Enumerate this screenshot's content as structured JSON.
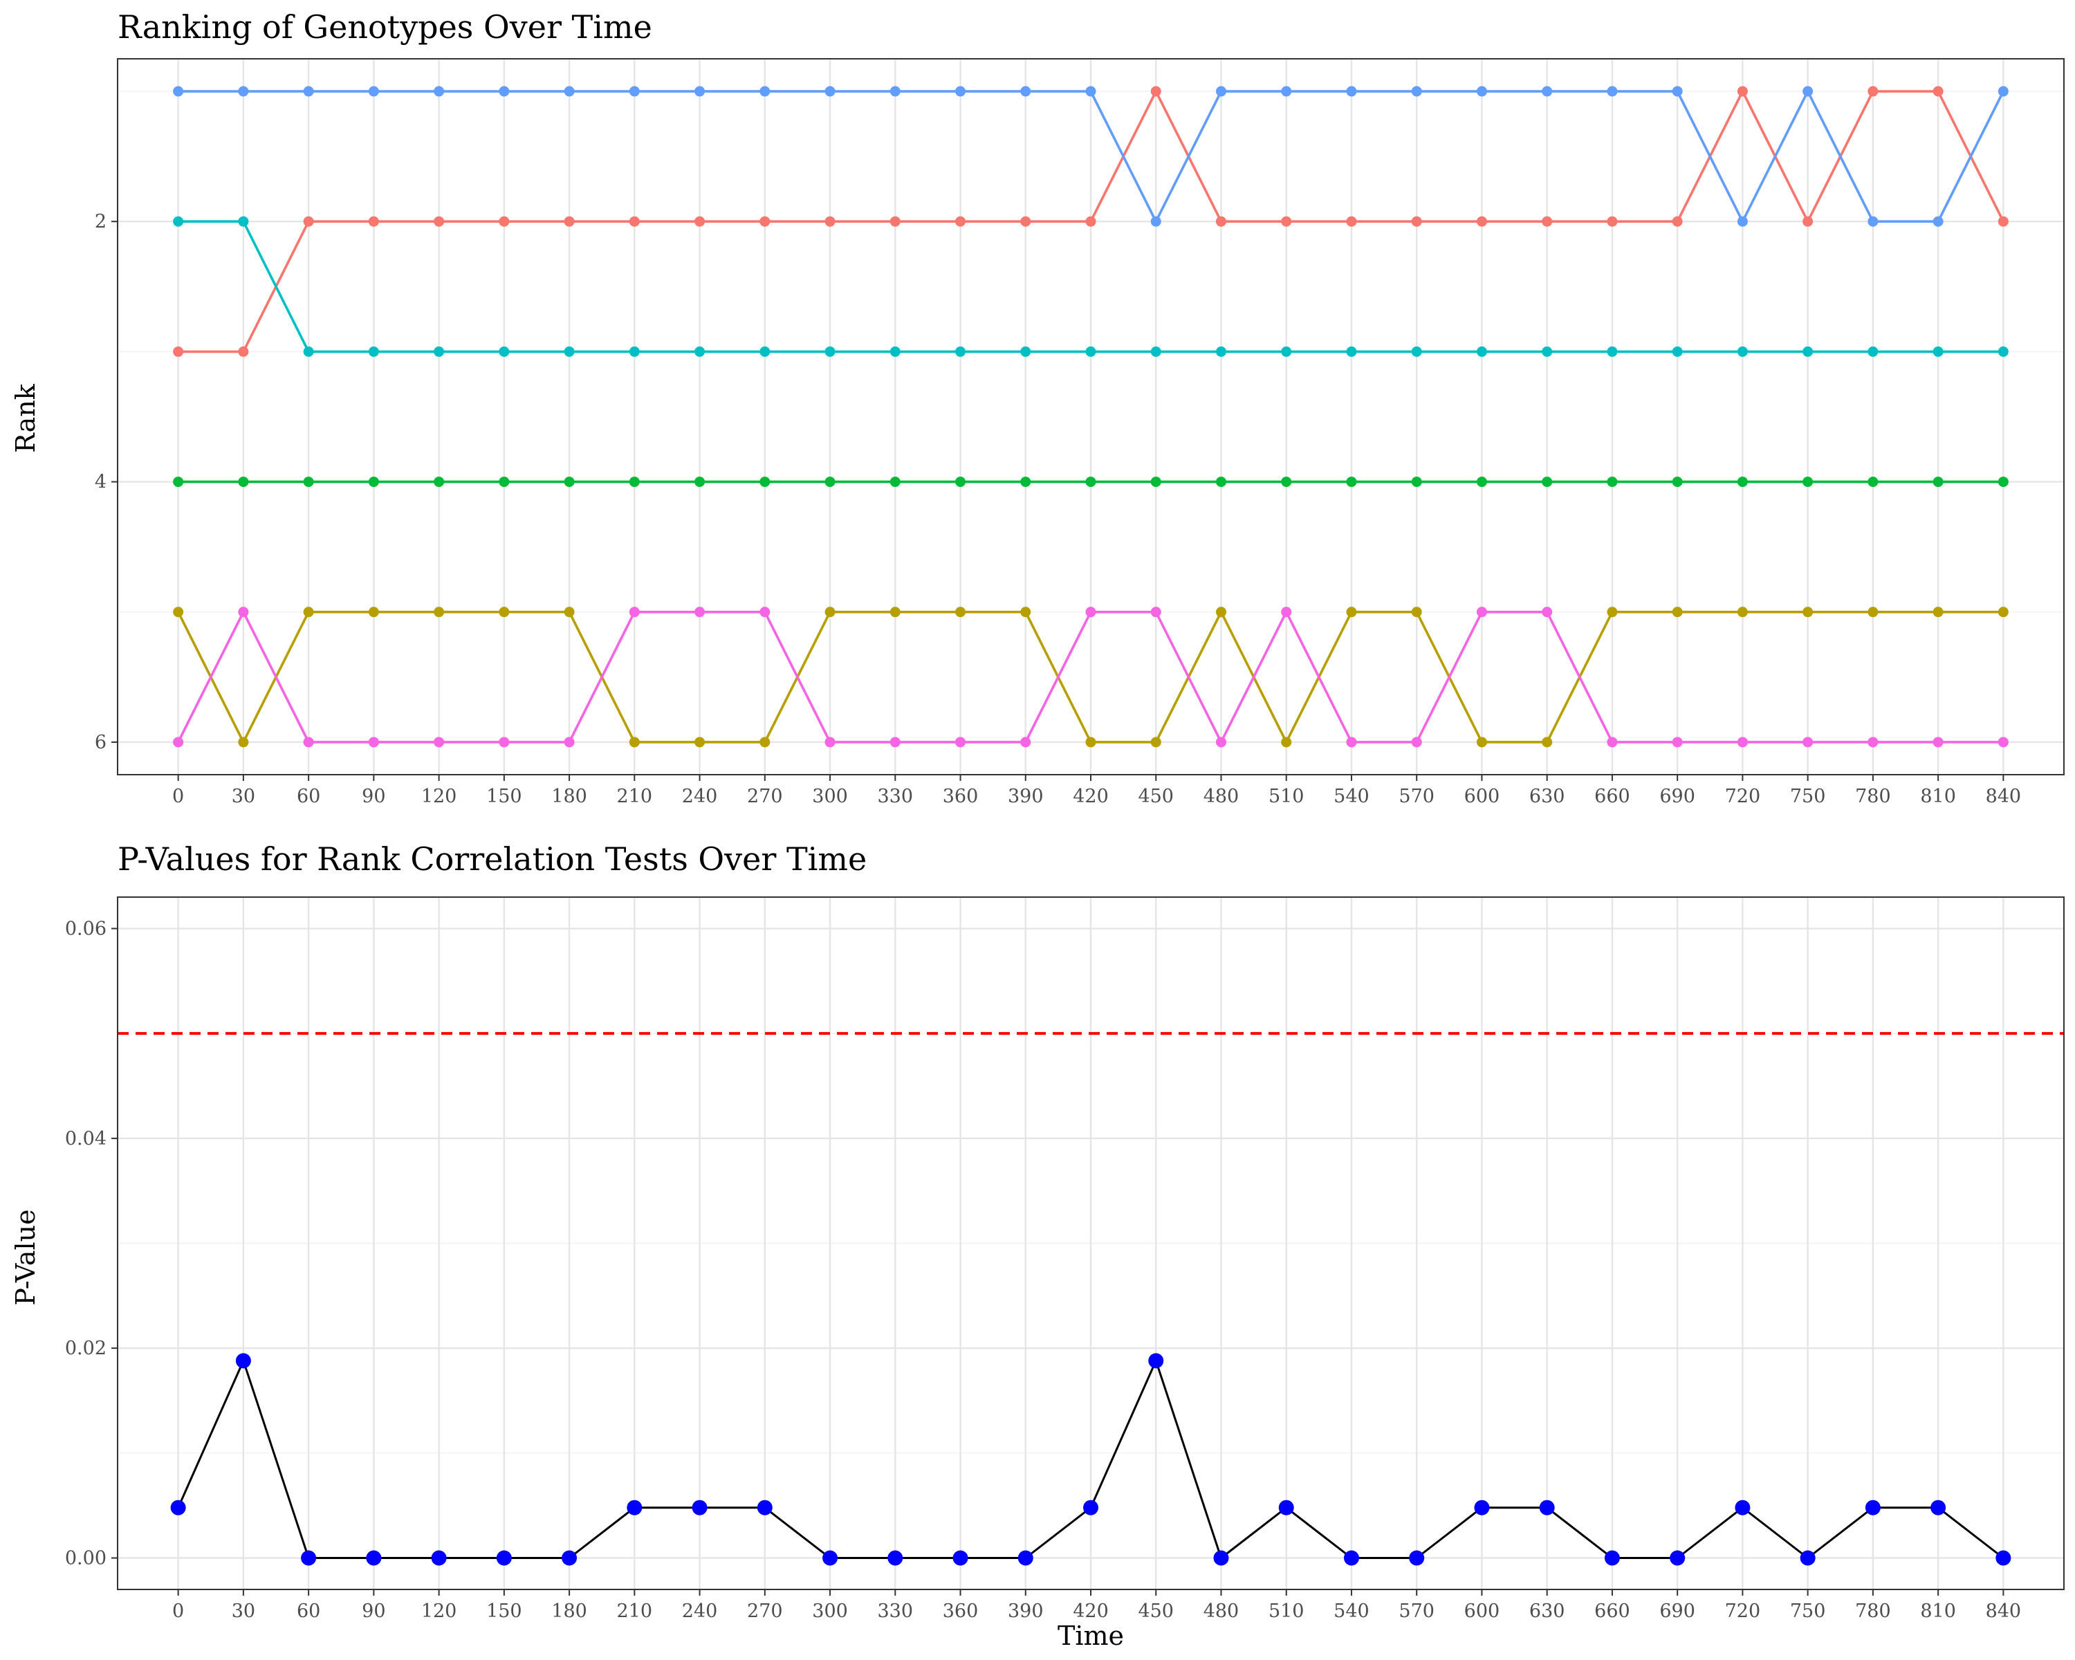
{
  "chart_data": [
    {
      "type": "line",
      "title": "Ranking of Genotypes Over Time",
      "xlabel": "",
      "ylabel": "Rank",
      "x": [
        0,
        30,
        60,
        90,
        120,
        150,
        180,
        210,
        240,
        270,
        300,
        330,
        360,
        390,
        420,
        450,
        480,
        510,
        540,
        570,
        600,
        630,
        660,
        690,
        720,
        750,
        780,
        810,
        840
      ],
      "y_ticks": [
        2,
        4,
        6
      ],
      "ylim": [
        6.25,
        0.75
      ],
      "y_reversed": true,
      "grid": true,
      "legend": "none",
      "series": [
        {
          "color": "#F8766D",
          "values": [
            3,
            3,
            2,
            2,
            2,
            2,
            2,
            2,
            2,
            2,
            2,
            2,
            2,
            2,
            2,
            1,
            2,
            2,
            2,
            2,
            2,
            2,
            2,
            2,
            1,
            2,
            1,
            1,
            2
          ]
        },
        {
          "color": "#B79F00",
          "values": [
            5,
            6,
            5,
            5,
            5,
            5,
            5,
            6,
            6,
            6,
            5,
            5,
            5,
            5,
            6,
            6,
            5,
            6,
            5,
            5,
            6,
            6,
            5,
            5,
            5,
            5,
            5,
            5,
            5
          ]
        },
        {
          "color": "#00BA38",
          "values": [
            4,
            4,
            4,
            4,
            4,
            4,
            4,
            4,
            4,
            4,
            4,
            4,
            4,
            4,
            4,
            4,
            4,
            4,
            4,
            4,
            4,
            4,
            4,
            4,
            4,
            4,
            4,
            4,
            4
          ]
        },
        {
          "color": "#00BFC4",
          "values": [
            2,
            2,
            3,
            3,
            3,
            3,
            3,
            3,
            3,
            3,
            3,
            3,
            3,
            3,
            3,
            3,
            3,
            3,
            3,
            3,
            3,
            3,
            3,
            3,
            3,
            3,
            3,
            3,
            3
          ]
        },
        {
          "color": "#619CFF",
          "values": [
            1,
            1,
            1,
            1,
            1,
            1,
            1,
            1,
            1,
            1,
            1,
            1,
            1,
            1,
            1,
            2,
            1,
            1,
            1,
            1,
            1,
            1,
            1,
            1,
            2,
            1,
            2,
            2,
            1
          ]
        },
        {
          "color": "#F564E3",
          "values": [
            6,
            5,
            6,
            6,
            6,
            6,
            6,
            5,
            5,
            5,
            6,
            6,
            6,
            6,
            5,
            5,
            6,
            5,
            6,
            6,
            5,
            5,
            6,
            6,
            6,
            6,
            6,
            6,
            6
          ]
        }
      ]
    },
    {
      "type": "line",
      "title": "P-Values for Rank Correlation Tests Over Time",
      "xlabel": "Time",
      "ylabel": "P-Value",
      "x": [
        0,
        30,
        60,
        90,
        120,
        150,
        180,
        210,
        240,
        270,
        300,
        330,
        360,
        390,
        420,
        450,
        480,
        510,
        540,
        570,
        600,
        630,
        660,
        690,
        720,
        750,
        780,
        810,
        840
      ],
      "y_ticks": [
        0.0,
        0.02,
        0.04,
        0.06
      ],
      "y_tick_labels": [
        "0.00",
        "0.02",
        "0.04",
        "0.06"
      ],
      "ylim": [
        -0.003,
        0.063
      ],
      "grid": true,
      "legend": "none",
      "series": [
        {
          "line_color": "#000000",
          "point_color": "#0000FF",
          "values": [
            0.0048,
            0.0188,
            0,
            0,
            0,
            0,
            0,
            0.0048,
            0.0048,
            0.0048,
            0,
            0,
            0,
            0,
            0.0048,
            0.0188,
            0,
            0.0048,
            0,
            0,
            0.0048,
            0.0048,
            0,
            0,
            0.0048,
            0,
            0.0048,
            0.0048,
            0
          ]
        }
      ],
      "reference_line": {
        "y": 0.05,
        "color": "#FF0000",
        "style": "dashed"
      }
    }
  ]
}
